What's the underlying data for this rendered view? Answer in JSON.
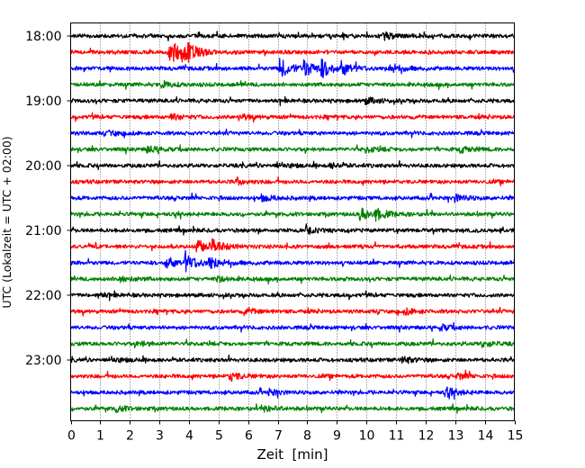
{
  "chart_data": {
    "type": "line",
    "title": "",
    "xlabel": "Zeit  [min]",
    "ylabel": "UTC (Lokalzeit = UTC + 02:00)",
    "xlim": [
      0,
      15
    ],
    "x_ticks": [
      "0",
      "1",
      "2",
      "3",
      "4",
      "5",
      "6",
      "7",
      "8",
      "9",
      "10",
      "11",
      "12",
      "13",
      "14",
      "15"
    ],
    "y_ticks": [
      "18:00",
      "19:00",
      "20:00",
      "21:00",
      "22:00",
      "23:00"
    ],
    "grid": "vertical dotted at each minute",
    "trace_colors": [
      "#000000",
      "#ff0000",
      "#0000ff",
      "#008000"
    ],
    "traces": [
      {
        "start": "18:00",
        "events": [
          {
            "t": 10.6,
            "amp": 0.25
          }
        ]
      },
      {
        "start": "18:15",
        "events": [
          {
            "t": 3.35,
            "amp": 1.0
          },
          {
            "t": 3.7,
            "amp": 0.5
          },
          {
            "t": 4.0,
            "amp": 0.3
          }
        ]
      },
      {
        "start": "18:30",
        "events": [
          {
            "t": 7.1,
            "amp": 0.7
          },
          {
            "t": 7.9,
            "amp": 0.6
          },
          {
            "t": 8.5,
            "amp": 0.55
          },
          {
            "t": 9.2,
            "amp": 0.4
          },
          {
            "t": 10.8,
            "amp": 0.35
          }
        ]
      },
      {
        "start": "18:45",
        "events": [
          {
            "t": 3.1,
            "amp": 0.2
          }
        ]
      },
      {
        "start": "19:00",
        "events": [
          {
            "t": 10.0,
            "amp": 0.2
          }
        ]
      },
      {
        "start": "19:15",
        "events": [
          {
            "t": 3.4,
            "amp": 0.2
          },
          {
            "t": 5.7,
            "amp": 0.2
          }
        ]
      },
      {
        "start": "19:30",
        "events": [
          {
            "t": 1.3,
            "amp": 0.15
          }
        ]
      },
      {
        "start": "19:45",
        "events": [
          {
            "t": 2.6,
            "amp": 0.25
          },
          {
            "t": 10.0,
            "amp": 0.2
          },
          {
            "t": 13.2,
            "amp": 0.2
          }
        ]
      },
      {
        "start": "20:00",
        "events": [
          {
            "t": 7.0,
            "amp": 0.2
          },
          {
            "t": 8.8,
            "amp": 0.15
          }
        ]
      },
      {
        "start": "20:15",
        "events": [
          {
            "t": 5.6,
            "amp": 0.2
          }
        ]
      },
      {
        "start": "20:30",
        "events": [
          {
            "t": 6.5,
            "amp": 0.2
          },
          {
            "t": 13.0,
            "amp": 0.25
          }
        ]
      },
      {
        "start": "20:45",
        "events": [
          {
            "t": 9.8,
            "amp": 0.45
          },
          {
            "t": 10.3,
            "amp": 0.35
          }
        ]
      },
      {
        "start": "21:00",
        "events": [
          {
            "t": 8.0,
            "amp": 0.15
          }
        ]
      },
      {
        "start": "21:15",
        "events": [
          {
            "t": 4.3,
            "amp": 0.55
          },
          {
            "t": 4.8,
            "amp": 0.4
          }
        ]
      },
      {
        "start": "21:30",
        "events": [
          {
            "t": 3.2,
            "amp": 0.45
          },
          {
            "t": 3.9,
            "amp": 0.55
          },
          {
            "t": 4.7,
            "amp": 0.45
          }
        ]
      },
      {
        "start": "21:45",
        "events": [
          {
            "t": 1.6,
            "amp": 0.2
          },
          {
            "t": 5.0,
            "amp": 0.15
          }
        ]
      },
      {
        "start": "22:00",
        "events": [
          {
            "t": 0.9,
            "amp": 0.15
          }
        ]
      },
      {
        "start": "22:15",
        "events": [
          {
            "t": 5.9,
            "amp": 0.2
          },
          {
            "t": 11.3,
            "amp": 0.2
          }
        ]
      },
      {
        "start": "22:30",
        "events": [
          {
            "t": 12.5,
            "amp": 0.2
          }
        ]
      },
      {
        "start": "22:45",
        "events": [
          {
            "t": 2.3,
            "amp": 0.15
          },
          {
            "t": 13.9,
            "amp": 0.2
          }
        ]
      },
      {
        "start": "23:00",
        "events": [
          {
            "t": 1.3,
            "amp": 0.2
          },
          {
            "t": 11.2,
            "amp": 0.25
          }
        ]
      },
      {
        "start": "23:15",
        "events": [
          {
            "t": 5.4,
            "amp": 0.3
          },
          {
            "t": 13.1,
            "amp": 0.2
          }
        ]
      },
      {
        "start": "23:30",
        "events": [
          {
            "t": 6.7,
            "amp": 0.2
          },
          {
            "t": 12.7,
            "amp": 0.35
          }
        ]
      },
      {
        "start": "23:45",
        "events": [
          {
            "t": 1.5,
            "amp": 0.2
          },
          {
            "t": 6.6,
            "amp": 0.2
          }
        ]
      }
    ]
  }
}
